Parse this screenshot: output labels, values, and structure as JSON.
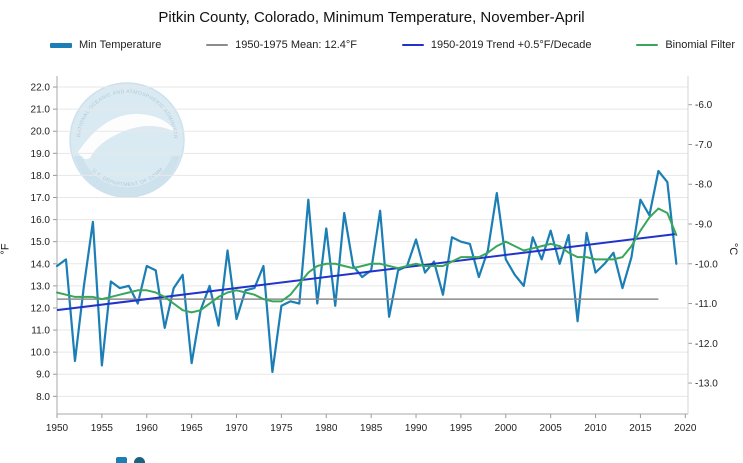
{
  "title": "Pitkin County, Colorado, Minimum Temperature, November-April",
  "axes": {
    "left_unit": "°F",
    "right_unit": "°C"
  },
  "noaa_logo": {
    "ring_text_top": "NATIONAL OCEANIC AND ATMOSPHERIC ADMINISTRATION",
    "ring_text_bottom": "U.S. DEPARTMENT OF COMMERCE"
  },
  "chart_data": {
    "type": "line",
    "title": "Pitkin County, Colorado, Minimum Temperature, November-April",
    "xlabel": "",
    "ylabel_left": "°F",
    "ylabel_right": "°C",
    "xlim": [
      1950,
      2020.3
    ],
    "ylim_f": [
      7.2,
      22.5
    ],
    "grid": "horizontal",
    "legend_position": "top",
    "x_ticks": [
      1950,
      1955,
      1960,
      1965,
      1970,
      1975,
      1980,
      1985,
      1990,
      1995,
      2000,
      2005,
      2010,
      2015,
      2020
    ],
    "y_ticks_f": [
      8.0,
      9.0,
      10.0,
      11.0,
      12.0,
      13.0,
      14.0,
      15.0,
      16.0,
      17.0,
      18.0,
      19.0,
      20.0,
      21.0,
      22.0
    ],
    "y_ticks_c": [
      -13.0,
      -12.0,
      -11.0,
      -10.0,
      -9.0,
      -8.0,
      -7.0,
      -6.0
    ],
    "years": [
      1950,
      1951,
      1952,
      1953,
      1954,
      1955,
      1956,
      1957,
      1958,
      1959,
      1960,
      1961,
      1962,
      1963,
      1964,
      1965,
      1966,
      1967,
      1968,
      1969,
      1970,
      1971,
      1972,
      1973,
      1974,
      1975,
      1976,
      1977,
      1978,
      1979,
      1980,
      1981,
      1982,
      1983,
      1984,
      1985,
      1986,
      1987,
      1988,
      1989,
      1990,
      1991,
      1992,
      1993,
      1994,
      1995,
      1996,
      1997,
      1998,
      1999,
      2000,
      2001,
      2002,
      2003,
      2004,
      2005,
      2006,
      2007,
      2008,
      2009,
      2010,
      2011,
      2012,
      2013,
      2014,
      2015,
      2016,
      2017,
      2018,
      2019
    ],
    "series": [
      {
        "name": "Min Temperature",
        "legend_label": "Min Temperature",
        "color": "#1b7eb5",
        "width": 2.2,
        "values": [
          13.9,
          14.2,
          9.6,
          13.0,
          15.9,
          9.4,
          13.2,
          12.9,
          13.0,
          12.2,
          13.9,
          13.7,
          11.1,
          12.9,
          13.5,
          9.5,
          11.9,
          13.0,
          11.2,
          14.6,
          11.5,
          12.8,
          12.9,
          13.9,
          9.1,
          12.1,
          12.3,
          12.2,
          16.9,
          12.2,
          15.6,
          12.1,
          16.3,
          13.9,
          13.4,
          13.7,
          16.4,
          11.6,
          13.7,
          13.9,
          15.1,
          13.6,
          14.1,
          12.6,
          15.2,
          15.0,
          14.9,
          13.4,
          14.6,
          17.2,
          14.2,
          13.5,
          13.0,
          15.2,
          14.2,
          15.5,
          14.0,
          15.3,
          11.4,
          15.4,
          13.6,
          14.0,
          14.5,
          12.9,
          14.3,
          16.9,
          16.2,
          18.2,
          17.7,
          14.0
        ]
      },
      {
        "name": "1950-1975 Mean",
        "legend_label": "1950-1975 Mean: 12.4°F",
        "color": "#8c8c8c",
        "width": 1.6,
        "mean": 12.4,
        "span": [
          1950,
          2017
        ]
      },
      {
        "name": "1950-2019 Trend",
        "legend_label": "1950-2019 Trend +0.5°F/Decade",
        "color": "#2233cc",
        "width": 2,
        "trend": {
          "x": [
            1950,
            2019
          ],
          "y": [
            11.9,
            15.35
          ]
        }
      },
      {
        "name": "Binomial Filter",
        "legend_label": "Binomial Filter",
        "color": "#3aa65c",
        "width": 2,
        "values": [
          12.7,
          12.6,
          12.5,
          12.5,
          12.5,
          12.4,
          12.5,
          12.6,
          12.7,
          12.8,
          12.8,
          12.7,
          12.5,
          12.2,
          11.9,
          11.8,
          11.9,
          12.2,
          12.5,
          12.7,
          12.8,
          12.7,
          12.6,
          12.4,
          12.3,
          12.3,
          12.6,
          13.1,
          13.6,
          13.9,
          14.0,
          14.0,
          13.9,
          13.8,
          13.9,
          14.0,
          14.0,
          13.9,
          13.8,
          13.9,
          14.0,
          13.9,
          13.9,
          13.9,
          14.1,
          14.3,
          14.3,
          14.3,
          14.5,
          14.8,
          15.0,
          14.8,
          14.6,
          14.7,
          14.8,
          14.9,
          14.8,
          14.5,
          14.3,
          14.3,
          14.2,
          14.2,
          14.2,
          14.3,
          14.8,
          15.5,
          16.1,
          16.5,
          16.3,
          15.3
        ]
      }
    ]
  }
}
